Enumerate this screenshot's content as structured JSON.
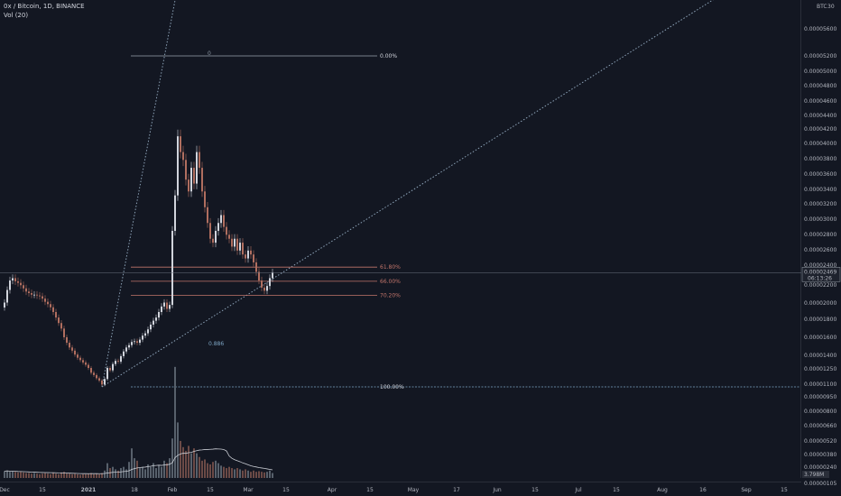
{
  "header": {
    "symbol": "0x / Bitcoin, 1D, BINANCE",
    "indicator": "Vol (20)",
    "indicator_value": "30"
  },
  "price_axis": {
    "unit": "BTC",
    "current_price_label": "0.00002469",
    "countdown": "06:13:26",
    "volume_label": "3.798M",
    "bottom_label": "0.00000105",
    "ticks": [
      "0.00005600",
      "0.00005200",
      "0.00005000",
      "0.00004800",
      "0.00004600",
      "0.00004400",
      "0.00004200",
      "0.00004000",
      "0.00003800",
      "0.00003600",
      "0.00003400",
      "0.00003200",
      "0.00003000",
      "0.00002800",
      "0.00002600",
      "0.00002400",
      "0.00002200",
      "0.00002000",
      "0.00001800",
      "0.00001600",
      "0.00001400",
      "0.00001250",
      "0.00001100",
      "0.00000950",
      "0.00000800",
      "0.00000660",
      "0.00000520",
      "0.00000380",
      "0.00000240"
    ]
  },
  "time_axis": {
    "ticks": [
      {
        "label": "Dec",
        "i": 0,
        "bold": false
      },
      {
        "label": "15",
        "i": 14,
        "bold": false
      },
      {
        "label": "2021",
        "i": 31,
        "bold": true
      },
      {
        "label": "18",
        "i": 48,
        "bold": false
      },
      {
        "label": "Feb",
        "i": 62,
        "bold": false
      },
      {
        "label": "15",
        "i": 76,
        "bold": false
      },
      {
        "label": "Mar",
        "i": 90,
        "bold": false
      },
      {
        "label": "15",
        "i": 104,
        "bold": false
      },
      {
        "label": "Apr",
        "i": 121,
        "bold": false
      },
      {
        "label": "15",
        "i": 135,
        "bold": false
      },
      {
        "label": "May",
        "i": 151,
        "bold": false
      },
      {
        "label": "17",
        "i": 167,
        "bold": false
      },
      {
        "label": "Jun",
        "i": 182,
        "bold": false
      },
      {
        "label": "15",
        "i": 196,
        "bold": false
      },
      {
        "label": "Jul",
        "i": 212,
        "bold": false
      },
      {
        "label": "15",
        "i": 226,
        "bold": false
      },
      {
        "label": "Aug",
        "i": 243,
        "bold": false
      },
      {
        "label": "16",
        "i": 258,
        "bold": false
      },
      {
        "label": "Sep",
        "i": 274,
        "bold": false
      },
      {
        "label": "15",
        "i": 288,
        "bold": false
      }
    ]
  },
  "colors": {
    "background": "#131722",
    "up": "#d1d4dc",
    "down": "#b06e5f",
    "vol_up": "#57606b",
    "vol_down": "#6b4a46",
    "fib_blue": "#7ea6c5",
    "fib_red": "#c2756b",
    "trend": "#8da3b8"
  },
  "chart_data": {
    "type": "candlestick",
    "price_unit": "BTC",
    "closes": [
      2.09e-05,
      2.25e-05,
      2.37e-05,
      2.4e-05,
      2.36e-05,
      2.34e-05,
      2.31e-05,
      2.27e-05,
      2.23e-05,
      2.21e-05,
      2.19e-05,
      2.19e-05,
      2.18e-05,
      2.17e-05,
      2.14e-05,
      2.1e-05,
      2.07e-05,
      2.03e-05,
      1.97e-05,
      1.9e-05,
      1.83e-05,
      1.76e-05,
      1.65e-05,
      1.58e-05,
      1.52e-05,
      1.48e-05,
      1.43e-05,
      1.39e-05,
      1.36e-05,
      1.33e-05,
      1.3e-05,
      1.26e-05,
      1.2e-05,
      1.17e-05,
      1.13e-05,
      1.1e-05,
      1.05e-05,
      1.12e-05,
      1.26e-05,
      1.23e-05,
      1.31e-05,
      1.35e-05,
      1.34e-05,
      1.41e-05,
      1.47e-05,
      1.52e-05,
      1.55e-05,
      1.59e-05,
      1.6e-05,
      1.58e-05,
      1.62e-05,
      1.67e-05,
      1.7e-05,
      1.75e-05,
      1.81e-05,
      1.86e-05,
      1.9e-05,
      1.97e-05,
      2.04e-05,
      2.09e-05,
      2.01e-05,
      2.06e-05,
      3e-05,
      3.45e-05,
      4.2e-05,
      4e-05,
      3.9e-05,
      3.65e-05,
      3.5e-05,
      3.8e-05,
      3.6e-05,
      4e-05,
      3.8e-05,
      3.5e-05,
      3.3e-05,
      3.1e-05,
      2.9e-05,
      2.85e-05,
      3e-05,
      3.1e-05,
      3.2e-05,
      3.05e-05,
      2.95e-05,
      2.9e-05,
      2.8e-05,
      2.9e-05,
      2.75e-05,
      2.85e-05,
      2.7e-05,
      2.65e-05,
      2.75e-05,
      2.7e-05,
      2.6e-05,
      2.48e-05,
      2.37e-05,
      2.28e-05,
      2.24e-05,
      2.3e-05,
      2.4e-05,
      2.47e-05
    ],
    "volumes": [
      0.55,
      0.6,
      0.5,
      0.55,
      0.5,
      0.45,
      0.5,
      0.45,
      0.4,
      0.4,
      0.35,
      0.4,
      0.35,
      0.3,
      0.35,
      0.4,
      0.35,
      0.3,
      0.4,
      0.35,
      0.3,
      0.45,
      0.5,
      0.4,
      0.35,
      0.3,
      0.35,
      0.3,
      0.25,
      0.3,
      0.3,
      0.35,
      0.4,
      0.3,
      0.35,
      0.3,
      0.4,
      0.6,
      1.2,
      0.8,
      0.9,
      0.7,
      0.6,
      0.8,
      0.9,
      0.7,
      1.3,
      2.4,
      1.6,
      1.4,
      0.8,
      0.9,
      0.7,
      1.1,
      0.9,
      1.2,
      0.8,
      1.0,
      0.9,
      1.4,
      1.2,
      1.6,
      3.2,
      9.0,
      4.5,
      3.0,
      2.5,
      2.2,
      2.6,
      2.0,
      2.4,
      2.0,
      1.7,
      1.4,
      1.5,
      1.2,
      1.1,
      1.3,
      1.4,
      1.2,
      1.0,
      0.9,
      0.8,
      0.9,
      0.8,
      0.7,
      0.8,
      0.7,
      0.6,
      0.7,
      0.6,
      0.5,
      0.6,
      0.5,
      0.55,
      0.5,
      0.45,
      0.5,
      0.6,
      0.4
    ],
    "fib_levels": [
      {
        "label": "0.00%",
        "price": 5.22e-05,
        "color": "#d1d4dc"
      },
      {
        "label": "61.80%",
        "price": 2.54e-05,
        "color": "#c2756b"
      },
      {
        "label": "66.00%",
        "price": 2.36e-05,
        "color": "#c2756b"
      },
      {
        "label": "70.20%",
        "price": 2.18e-05,
        "color": "#c2756b"
      },
      {
        "label": "100.00%",
        "price": 1.02e-05,
        "color": "#d1d4dc"
      }
    ],
    "fib_zero_marker": "0",
    "fib_annotation": "0.886",
    "fib_start_index": 36,
    "trendlines": [
      {
        "from": {
          "i": 36,
          "price": 1.02e-05
        },
        "to": {
          "i": 320,
          "price": 7.2e-05
        }
      },
      {
        "from": {
          "i": 36,
          "price": 1.02e-05
        },
        "to": {
          "i": 70,
          "price": 7.2e-05
        }
      }
    ]
  }
}
